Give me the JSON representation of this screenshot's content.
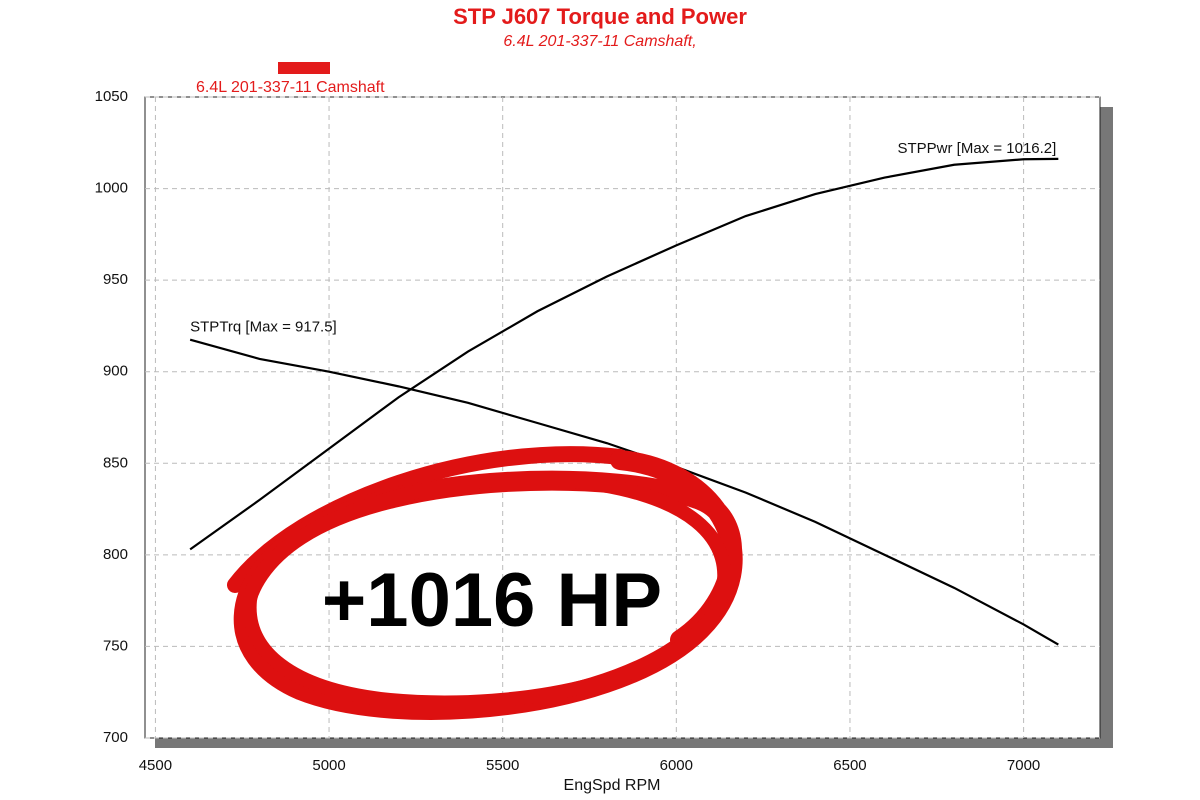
{
  "chart_data": {
    "type": "line",
    "title": "STP J607 Torque and Power",
    "subtitle": "6.4L 201-337-11 Camshaft,",
    "x_label": "EngSpd RPM",
    "legend": {
      "label": "6.4L 201-337-11 Camshaft",
      "color": "#e31b1b"
    },
    "callout": "+1016 HP",
    "x": [
      4600,
      4800,
      5000,
      5200,
      5400,
      5600,
      5800,
      6000,
      6200,
      6400,
      6600,
      6800,
      7000,
      7100
    ],
    "series": [
      {
        "name": "STPTrq [Max = 917.5]",
        "color": "#000000",
        "values": [
          917.5,
          907,
          900,
          892,
          883,
          872,
          861,
          848,
          834,
          818,
          800,
          782,
          762,
          751
        ]
      },
      {
        "name": "STPPwr [Max = 1016.2]",
        "color": "#000000",
        "values": [
          803,
          830,
          858,
          886,
          911,
          933,
          952,
          969,
          985,
          997,
          1006,
          1013,
          1016,
          1016.2
        ]
      }
    ],
    "xlim": [
      4470,
      7220
    ],
    "xticks": [
      4500,
      5000,
      5500,
      6000,
      6500,
      7000
    ],
    "ylim": [
      700,
      1050
    ],
    "yticks": [
      700,
      750,
      800,
      850,
      900,
      950,
      1000,
      1050
    ],
    "grid": true
  }
}
